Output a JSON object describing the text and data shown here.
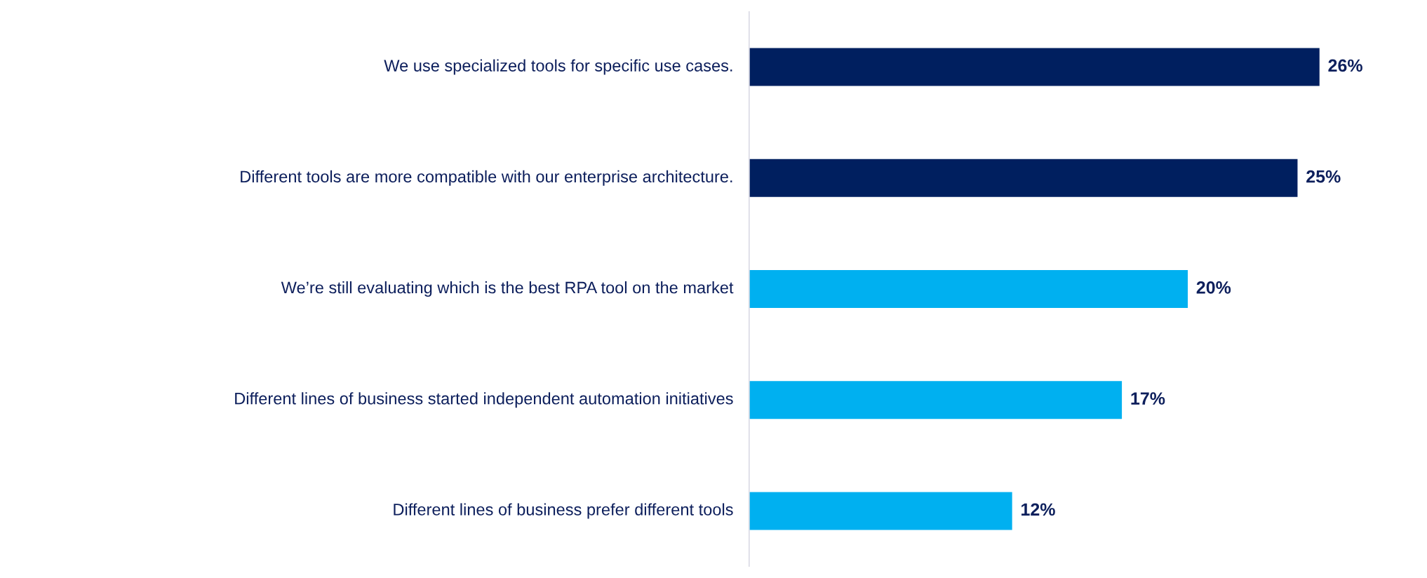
{
  "chart_data": {
    "type": "bar",
    "orientation": "horizontal",
    "categories": [
      "We use specialized tools for specific use cases.",
      "Different tools are more compatible with our enterprise architecture.",
      "We’re still evaluating which is the best RPA tool on the market",
      "Different lines of business started independent automation initiatives",
      "Different lines of business prefer different tools"
    ],
    "values": [
      26,
      25,
      20,
      17,
      12
    ],
    "colors": [
      "#001f5f",
      "#001f5f",
      "#00b0f0",
      "#00b0f0",
      "#00b0f0"
    ],
    "value_labels": [
      "26%",
      "25%",
      "20%",
      "17%",
      "12%"
    ],
    "grid": false,
    "legend": false
  }
}
